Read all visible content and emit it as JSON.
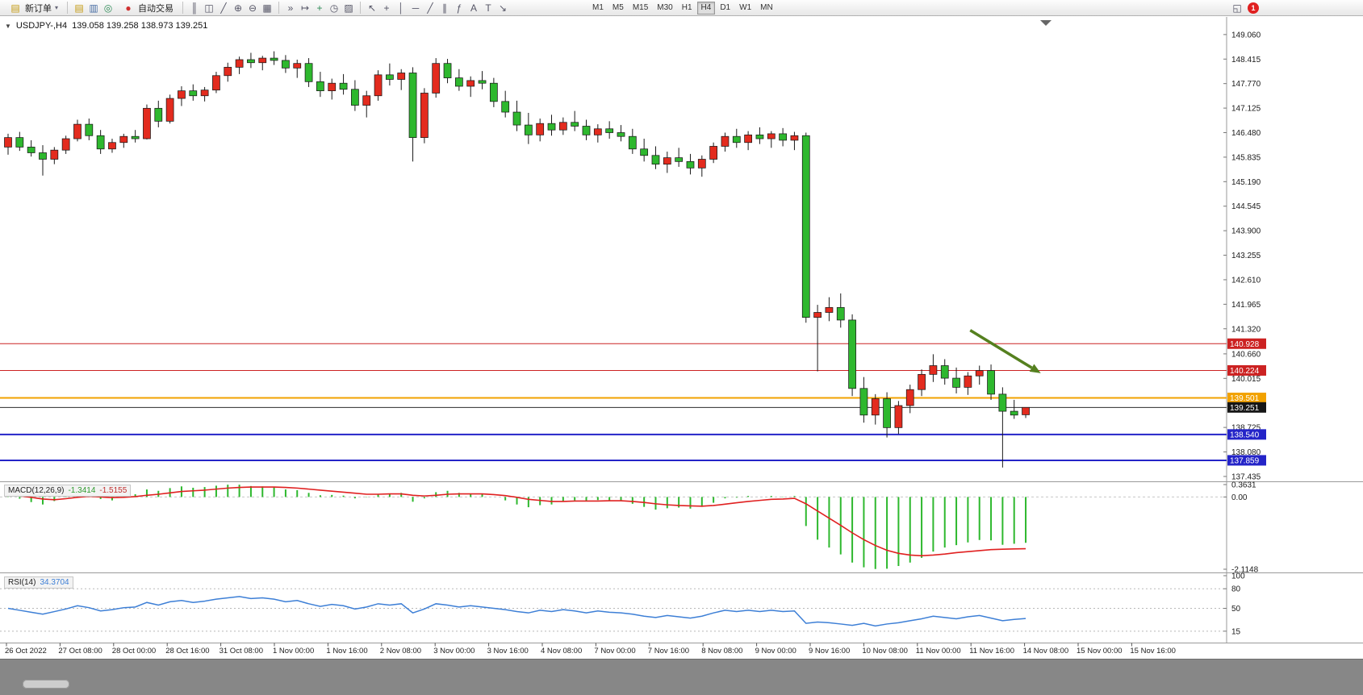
{
  "toolbar": {
    "new_order_label": "新订单",
    "autotrade_label": "自动交易",
    "left_icons": [
      {
        "name": "market-watch-icon",
        "glyph": "▤",
        "cls": "ic-col-y"
      },
      {
        "name": "data-window-icon",
        "glyph": "▥",
        "cls": "ic-col-b"
      },
      {
        "name": "navigator-icon",
        "glyph": "◎",
        "cls": "ic-col-g"
      }
    ],
    "chart_icons": [
      {
        "name": "bar-chart-type-icon",
        "glyph": "║",
        "cls": ""
      },
      {
        "name": "candle-chart-type-icon",
        "glyph": "◫",
        "cls": ""
      },
      {
        "name": "line-chart-type-icon",
        "glyph": "╱",
        "cls": ""
      },
      {
        "name": "zoom-in-icon",
        "glyph": "⊕",
        "cls": ""
      },
      {
        "name": "zoom-out-icon",
        "glyph": "⊖",
        "cls": ""
      },
      {
        "name": "tile-windows-icon",
        "glyph": "▦",
        "cls": ""
      }
    ],
    "object_icons": [
      {
        "name": "auto-scroll-icon",
        "glyph": "»",
        "cls": ""
      },
      {
        "name": "chart-shift-icon",
        "glyph": "↦",
        "cls": ""
      },
      {
        "name": "indicators-icon",
        "glyph": "+",
        "cls": "ic-col-g"
      },
      {
        "name": "periods-list-icon",
        "glyph": "◷",
        "cls": ""
      },
      {
        "name": "templates-icon",
        "glyph": "▨",
        "cls": ""
      }
    ],
    "draw_icons": [
      {
        "name": "cursor-icon",
        "glyph": "↖",
        "cls": ""
      },
      {
        "name": "crosshair-icon",
        "glyph": "+",
        "cls": ""
      },
      {
        "name": "vertical-line-icon",
        "glyph": "│",
        "cls": ""
      },
      {
        "name": "horizontal-line-icon",
        "glyph": "─",
        "cls": ""
      },
      {
        "name": "trendline-icon",
        "glyph": "╱",
        "cls": ""
      },
      {
        "name": "channel-icon",
        "glyph": "∥",
        "cls": ""
      },
      {
        "name": "fibonacci-icon",
        "glyph": "ƒ",
        "cls": ""
      },
      {
        "name": "text-icon",
        "glyph": "A",
        "cls": ""
      },
      {
        "name": "text-label-icon",
        "glyph": "T",
        "cls": ""
      },
      {
        "name": "arrows-icon",
        "glyph": "↘",
        "cls": ""
      }
    ],
    "timeframes": [
      "M1",
      "M5",
      "M15",
      "M30",
      "H1",
      "H4",
      "D1",
      "W1",
      "MN"
    ],
    "active_timeframe": "H4",
    "window_icon_glyph": "◱",
    "notification_badge": "1"
  },
  "header": {
    "symbol_period": "USDJPY-,H4",
    "ohlc": "139.058 139.258 138.973 139.251"
  },
  "chart_data": {
    "type": "candlestick",
    "symbol": "USDJPY-",
    "timeframe": "H4",
    "current_bar": {
      "open": 139.058,
      "high": 139.258,
      "low": 138.973,
      "close": 139.251
    },
    "price_axis": {
      "range": [
        137.37,
        149.46
      ],
      "ticks": [
        "149.060",
        "148.415",
        "147.770",
        "147.125",
        "146.480",
        "145.835",
        "145.190",
        "144.545",
        "143.900",
        "143.255",
        "142.610",
        "141.965",
        "141.320",
        "140.660",
        "140.015",
        "138.725",
        "138.080",
        "137.435"
      ]
    },
    "time_axis": [
      "26 Oct 2022",
      "27 Oct 08:00",
      "28 Oct 00:00",
      "28 Oct 16:00",
      "31 Oct 08:00",
      "1 Nov 00:00",
      "1 Nov 16:00",
      "2 Nov 08:00",
      "3 Nov 00:00",
      "3 Nov 16:00",
      "4 Nov 08:00",
      "7 Nov 00:00",
      "7 Nov 16:00",
      "8 Nov 08:00",
      "9 Nov 00:00",
      "9 Nov 16:00",
      "10 Nov 08:00",
      "11 Nov 00:00",
      "11 Nov 16:00",
      "14 Nov 08:00",
      "15 Nov 00:00",
      "15 Nov 16:00"
    ],
    "colors": {
      "up": "#e32b1e",
      "down": "#2eb82e",
      "wick": "#1a1a1a"
    },
    "candles": [
      [
        146.1,
        146.45,
        145.9,
        146.35
      ],
      [
        146.35,
        146.5,
        146.0,
        146.1
      ],
      [
        146.1,
        146.28,
        145.85,
        145.95
      ],
      [
        145.95,
        146.15,
        145.35,
        145.78
      ],
      [
        145.78,
        146.1,
        145.65,
        146.02
      ],
      [
        146.02,
        146.4,
        145.92,
        146.32
      ],
      [
        146.32,
        146.82,
        146.25,
        146.7
      ],
      [
        146.7,
        146.85,
        146.28,
        146.4
      ],
      [
        146.4,
        146.55,
        145.92,
        146.05
      ],
      [
        146.05,
        146.32,
        145.95,
        146.22
      ],
      [
        146.22,
        146.45,
        146.08,
        146.38
      ],
      [
        146.38,
        146.55,
        146.22,
        146.32
      ],
      [
        146.32,
        147.22,
        146.3,
        147.12
      ],
      [
        147.12,
        147.32,
        146.62,
        146.78
      ],
      [
        146.78,
        147.48,
        146.72,
        147.38
      ],
      [
        147.38,
        147.7,
        147.18,
        147.58
      ],
      [
        147.58,
        147.75,
        147.32,
        147.45
      ],
      [
        147.45,
        147.68,
        147.3,
        147.6
      ],
      [
        147.6,
        148.08,
        147.52,
        147.98
      ],
      [
        147.98,
        148.32,
        147.82,
        148.2
      ],
      [
        148.2,
        148.48,
        148.02,
        148.4
      ],
      [
        148.4,
        148.58,
        148.18,
        148.32
      ],
      [
        148.32,
        148.5,
        148.12,
        148.44
      ],
      [
        148.44,
        148.62,
        148.26,
        148.38
      ],
      [
        148.38,
        148.52,
        148.05,
        148.18
      ],
      [
        148.18,
        148.4,
        147.92,
        148.3
      ],
      [
        148.3,
        148.44,
        147.68,
        147.82
      ],
      [
        147.82,
        148.08,
        147.42,
        147.58
      ],
      [
        147.58,
        147.9,
        147.35,
        147.78
      ],
      [
        147.78,
        148.02,
        147.48,
        147.62
      ],
      [
        147.62,
        147.86,
        147.05,
        147.2
      ],
      [
        147.2,
        147.58,
        146.88,
        147.45
      ],
      [
        147.45,
        148.12,
        147.32,
        148.0
      ],
      [
        148.0,
        148.3,
        147.72,
        147.88
      ],
      [
        147.88,
        148.15,
        147.6,
        148.05
      ],
      [
        148.05,
        148.2,
        145.72,
        146.35
      ],
      [
        146.35,
        147.65,
        146.2,
        147.52
      ],
      [
        147.52,
        148.44,
        147.4,
        148.3
      ],
      [
        148.3,
        148.42,
        147.78,
        147.92
      ],
      [
        147.92,
        148.15,
        147.58,
        147.7
      ],
      [
        147.7,
        147.96,
        147.42,
        147.85
      ],
      [
        147.85,
        148.1,
        147.62,
        147.78
      ],
      [
        147.78,
        147.92,
        147.15,
        147.3
      ],
      [
        147.3,
        147.58,
        146.88,
        147.02
      ],
      [
        147.02,
        147.32,
        146.52,
        146.68
      ],
      [
        146.68,
        147.0,
        146.18,
        146.42
      ],
      [
        146.42,
        146.85,
        146.25,
        146.72
      ],
      [
        146.72,
        146.95,
        146.4,
        146.55
      ],
      [
        146.55,
        146.88,
        146.42,
        146.75
      ],
      [
        146.75,
        147.05,
        146.52,
        146.65
      ],
      [
        146.65,
        146.82,
        146.28,
        146.42
      ],
      [
        146.42,
        146.7,
        146.22,
        146.58
      ],
      [
        146.58,
        146.78,
        146.32,
        146.48
      ],
      [
        146.48,
        146.68,
        146.25,
        146.38
      ],
      [
        146.38,
        146.58,
        145.92,
        146.05
      ],
      [
        146.05,
        146.32,
        145.72,
        145.88
      ],
      [
        145.88,
        146.12,
        145.52,
        145.65
      ],
      [
        145.65,
        145.98,
        145.42,
        145.82
      ],
      [
        145.82,
        146.08,
        145.58,
        145.72
      ],
      [
        145.72,
        145.92,
        145.38,
        145.55
      ],
      [
        145.55,
        145.88,
        145.32,
        145.78
      ],
      [
        145.78,
        146.22,
        145.68,
        146.12
      ],
      [
        146.12,
        146.48,
        145.98,
        146.38
      ],
      [
        146.38,
        146.58,
        146.08,
        146.22
      ],
      [
        146.22,
        146.52,
        146.02,
        146.42
      ],
      [
        146.42,
        146.62,
        146.18,
        146.32
      ],
      [
        146.32,
        146.52,
        146.08,
        146.45
      ],
      [
        146.45,
        146.6,
        146.12,
        146.28
      ],
      [
        146.28,
        146.5,
        146.02,
        146.4
      ],
      [
        146.4,
        146.48,
        141.48,
        141.62
      ],
      [
        141.62,
        141.95,
        140.2,
        141.75
      ],
      [
        141.75,
        142.15,
        141.52,
        141.88
      ],
      [
        141.88,
        142.25,
        141.35,
        141.55
      ],
      [
        141.55,
        141.7,
        139.55,
        139.75
      ],
      [
        139.75,
        140.05,
        138.85,
        139.05
      ],
      [
        139.05,
        139.6,
        138.8,
        139.48
      ],
      [
        139.48,
        139.65,
        138.46,
        138.72
      ],
      [
        138.72,
        139.42,
        138.55,
        139.3
      ],
      [
        139.3,
        139.85,
        139.1,
        139.72
      ],
      [
        139.72,
        140.25,
        139.55,
        140.12
      ],
      [
        140.12,
        140.65,
        139.92,
        140.35
      ],
      [
        140.35,
        140.52,
        139.85,
        140.02
      ],
      [
        140.02,
        140.3,
        139.62,
        139.78
      ],
      [
        139.78,
        140.18,
        139.58,
        140.08
      ],
      [
        140.08,
        140.35,
        139.85,
        140.22
      ],
      [
        140.22,
        140.38,
        139.45,
        139.6
      ],
      [
        139.6,
        139.78,
        137.67,
        139.15
      ],
      [
        139.15,
        139.45,
        138.95,
        139.05
      ],
      [
        139.058,
        139.258,
        138.973,
        139.251
      ]
    ],
    "hlines": [
      {
        "price": 140.928,
        "label": "140.928",
        "color": "#cc2222",
        "width": 1
      },
      {
        "price": 140.224,
        "label": "140.224",
        "color": "#cc2222",
        "width": 1
      },
      {
        "price": 139.501,
        "label": "139.501",
        "color": "#f2a200",
        "width": 2
      },
      {
        "price": 139.251,
        "label": "139.251",
        "color": "#2b2b2b",
        "width": 1,
        "is_current_price": true
      },
      {
        "price": 138.54,
        "label": "138.540",
        "color": "#2424c8",
        "width": 2
      },
      {
        "price": 137.859,
        "label": "137.859",
        "color": "#2424c8",
        "width": 2
      }
    ],
    "arrow_annotation": {
      "from_bar": 83.2,
      "from_price": 141.28,
      "to_bar": 89.3,
      "to_price": 140.15,
      "color": "#55801f"
    },
    "macd": {
      "label": "MACD(12,26,9)",
      "main_value": "-1.3414",
      "signal_value": "-1.5155",
      "range": [
        -2.1148,
        0.3631
      ],
      "axis_labels": [
        "0.3631",
        "0.00",
        "-2.1148"
      ],
      "colors": {
        "histogram": "#2eb82e",
        "signal": "#e02020"
      },
      "histogram": [
        0.1,
        -0.05,
        -0.15,
        -0.22,
        -0.12,
        0.04,
        0.14,
        0.1,
        -0.06,
        -0.1,
        0.03,
        0.08,
        0.22,
        0.18,
        0.26,
        0.31,
        0.27,
        0.29,
        0.33,
        0.36,
        0.36,
        0.32,
        0.31,
        0.28,
        0.22,
        0.2,
        0.12,
        0.05,
        0.06,
        0.04,
        -0.04,
        -0.01,
        0.09,
        0.1,
        0.12,
        -0.14,
        -0.04,
        0.14,
        0.18,
        0.12,
        0.1,
        0.08,
        0.0,
        -0.1,
        -0.22,
        -0.3,
        -0.24,
        -0.22,
        -0.14,
        -0.1,
        -0.12,
        -0.09,
        -0.1,
        -0.12,
        -0.2,
        -0.29,
        -0.37,
        -0.33,
        -0.31,
        -0.34,
        -0.29,
        -0.17,
        -0.04,
        -0.02,
        0.03,
        0.0,
        0.03,
        0.01,
        0.03,
        -0.85,
        -1.25,
        -1.48,
        -1.68,
        -1.92,
        -2.06,
        -2.11,
        -2.1,
        -2.02,
        -1.92,
        -1.78,
        -1.6,
        -1.48,
        -1.41,
        -1.33,
        -1.26,
        -1.27,
        -1.4,
        -1.37,
        -1.3414
      ],
      "signal": [
        0.05,
        0.03,
        -0.01,
        -0.06,
        -0.08,
        -0.05,
        -0.01,
        0.02,
        0.0,
        -0.02,
        -0.01,
        0.01,
        0.05,
        0.08,
        0.12,
        0.16,
        0.18,
        0.2,
        0.23,
        0.26,
        0.28,
        0.29,
        0.29,
        0.29,
        0.28,
        0.26,
        0.23,
        0.2,
        0.17,
        0.14,
        0.11,
        0.08,
        0.08,
        0.09,
        0.09,
        0.05,
        0.03,
        0.05,
        0.08,
        0.09,
        0.09,
        0.09,
        0.07,
        0.04,
        -0.01,
        -0.07,
        -0.1,
        -0.13,
        -0.13,
        -0.12,
        -0.12,
        -0.12,
        -0.11,
        -0.11,
        -0.13,
        -0.16,
        -0.2,
        -0.23,
        -0.25,
        -0.26,
        -0.27,
        -0.25,
        -0.21,
        -0.17,
        -0.13,
        -0.1,
        -0.07,
        -0.06,
        -0.04,
        -0.2,
        -0.41,
        -0.62,
        -0.83,
        -1.05,
        -1.25,
        -1.42,
        -1.56,
        -1.65,
        -1.7,
        -1.72,
        -1.7,
        -1.67,
        -1.63,
        -1.6,
        -1.57,
        -1.54,
        -1.53,
        -1.52,
        -1.5155
      ]
    },
    "rsi": {
      "label": "RSI(14)",
      "value": "34.3704",
      "range": [
        0,
        100
      ],
      "axis_labels": [
        100,
        80,
        50,
        15
      ],
      "levels": [
        80,
        50,
        15
      ],
      "color": "#3d7fd6",
      "values": [
        50,
        47,
        44,
        41,
        45,
        49,
        54,
        51,
        46,
        48,
        51,
        52,
        59,
        55,
        60,
        62,
        59,
        61,
        64,
        66,
        68,
        65,
        66,
        64,
        60,
        62,
        57,
        53,
        56,
        54,
        49,
        52,
        57,
        55,
        57,
        43,
        49,
        57,
        55,
        52,
        54,
        52,
        50,
        48,
        45,
        43,
        47,
        45,
        48,
        46,
        43,
        46,
        44,
        43,
        41,
        38,
        36,
        39,
        37,
        35,
        38,
        43,
        47,
        45,
        47,
        45,
        47,
        45,
        46,
        27,
        29,
        28,
        26,
        24,
        27,
        23,
        26,
        28,
        31,
        34,
        38,
        36,
        34,
        37,
        39,
        35,
        31,
        33,
        34.37
      ]
    }
  }
}
